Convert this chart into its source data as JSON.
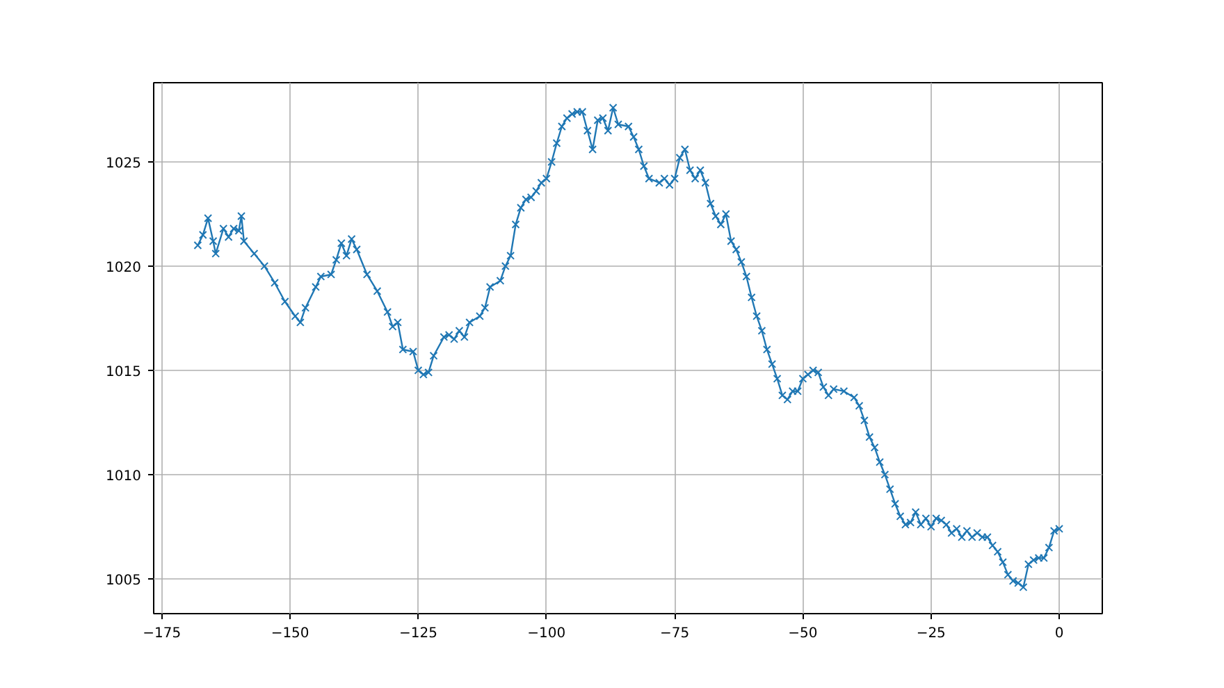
{
  "chart_data": {
    "type": "line",
    "marker": "cross",
    "line_style": "solid",
    "grid": true,
    "xlim": [
      -176.6,
      8.4
    ],
    "ylim": [
      1003.33,
      1028.8
    ],
    "xticks": [
      {
        "value": -175,
        "label": "−175"
      },
      {
        "value": -150,
        "label": "−150"
      },
      {
        "value": -125,
        "label": "−125"
      },
      {
        "value": -100,
        "label": "−100"
      },
      {
        "value": -75,
        "label": "−75"
      },
      {
        "value": -50,
        "label": "−50"
      },
      {
        "value": -25,
        "label": "−25"
      },
      0
    ],
    "yticks": [
      1005,
      1010,
      1015,
      1020,
      1025
    ],
    "x": [
      -168,
      -167,
      -166,
      -165,
      -164.5,
      -163,
      -162,
      -161,
      -160,
      -159.5,
      -159,
      -157,
      -155,
      -153,
      -151,
      -149,
      -148,
      -147,
      -145,
      -144,
      -142,
      -141,
      -140,
      -139,
      -138,
      -137,
      -135,
      -133,
      -131,
      -130,
      -129,
      -128,
      -126,
      -125,
      -124,
      -123,
      -122,
      -120,
      -119,
      -118,
      -117,
      -116,
      -115,
      -113,
      -112,
      -111,
      -109,
      -108,
      -107,
      -106,
      -105,
      -104,
      -103,
      -102,
      -101,
      -100,
      -99,
      -98,
      -97,
      -96,
      -95,
      -94,
      -93,
      -92,
      -91,
      -90,
      -89,
      -88,
      -87,
      -86,
      -84,
      -83,
      -82,
      -81,
      -80,
      -78,
      -77,
      -76,
      -75,
      -74,
      -73,
      -72,
      -71,
      -70,
      -69,
      -68,
      -67,
      -66,
      -65,
      -64,
      -63,
      -62,
      -61,
      -60,
      -59,
      -58,
      -57,
      -56,
      -55,
      -54,
      -53,
      -52,
      -51,
      -50,
      -49,
      -48,
      -47,
      -46,
      -45,
      -44,
      -42,
      -40,
      -39,
      -38,
      -37,
      -36,
      -35,
      -34,
      -33,
      -32,
      -31,
      -30,
      -29,
      -28,
      -27,
      -26,
      -25,
      -24,
      -23,
      -22,
      -21,
      -20,
      -19,
      -18,
      -17,
      -16,
      -15,
      -14,
      -13,
      -12,
      -11,
      -10,
      -9,
      -8,
      -7,
      -6,
      -5,
      -4,
      -3,
      -2,
      -1,
      0
    ],
    "series": [
      {
        "color": "#1f77b4",
        "values": [
          1021.0,
          1021.5,
          1022.3,
          1021.2,
          1020.6,
          1021.8,
          1021.4,
          1021.8,
          1021.7,
          1022.4,
          1021.2,
          1020.6,
          1020.0,
          1019.2,
          1018.3,
          1017.6,
          1017.3,
          1018.0,
          1019.0,
          1019.5,
          1019.6,
          1020.3,
          1021.1,
          1020.5,
          1021.3,
          1020.8,
          1019.6,
          1018.8,
          1017.8,
          1017.1,
          1017.3,
          1016.0,
          1015.9,
          1015.0,
          1014.8,
          1014.9,
          1015.7,
          1016.6,
          1016.7,
          1016.5,
          1016.9,
          1016.6,
          1017.3,
          1017.6,
          1018.0,
          1019.0,
          1019.3,
          1020.0,
          1020.5,
          1022.0,
          1022.8,
          1023.2,
          1023.3,
          1023.6,
          1024.0,
          1024.2,
          1025.0,
          1025.9,
          1026.7,
          1027.1,
          1027.3,
          1027.4,
          1027.4,
          1026.5,
          1025.6,
          1027.0,
          1027.1,
          1026.5,
          1027.6,
          1026.8,
          1026.7,
          1026.2,
          1025.6,
          1024.8,
          1024.2,
          1024.0,
          1024.2,
          1023.9,
          1024.2,
          1025.2,
          1025.6,
          1024.6,
          1024.2,
          1024.6,
          1024.0,
          1023.0,
          1022.4,
          1022.0,
          1022.5,
          1021.2,
          1020.8,
          1020.2,
          1019.5,
          1018.5,
          1017.6,
          1016.9,
          1016.0,
          1015.3,
          1014.6,
          1013.8,
          1013.6,
          1014.0,
          1014.0,
          1014.6,
          1014.8,
          1015.0,
          1014.9,
          1014.2,
          1013.8,
          1014.1,
          1014.0,
          1013.7,
          1013.3,
          1012.6,
          1011.8,
          1011.3,
          1010.6,
          1010.0,
          1009.3,
          1008.6,
          1008.0,
          1007.6,
          1007.7,
          1008.2,
          1007.6,
          1007.9,
          1007.5,
          1007.9,
          1007.8,
          1007.6,
          1007.2,
          1007.4,
          1007.0,
          1007.3,
          1007.0,
          1007.2,
          1007.0,
          1007.0,
          1006.6,
          1006.3,
          1005.8,
          1005.2,
          1004.9,
          1004.8,
          1004.6,
          1005.7,
          1005.9,
          1006.0,
          1006.0,
          1006.5,
          1007.3,
          1007.4
        ]
      }
    ]
  }
}
